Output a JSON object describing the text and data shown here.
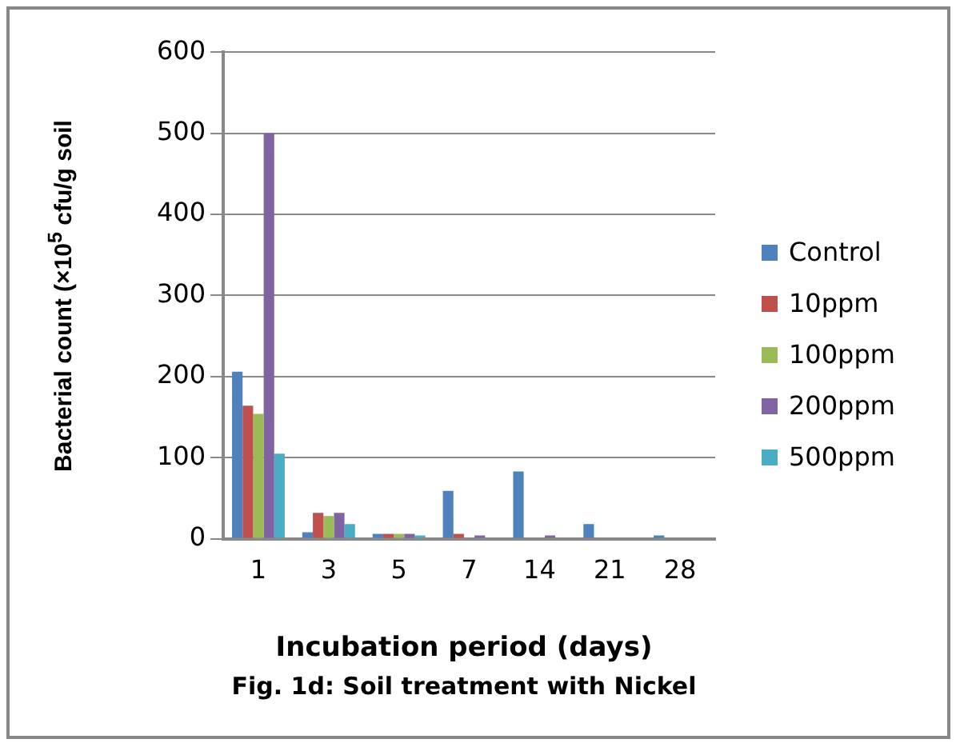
{
  "chart_data": {
    "type": "bar",
    "xlabel": "Incubation period (days)",
    "ylabel": "Bacterial count (×10$^{5}$ cfu/g soil",
    "categories": [
      "1",
      "3",
      "5",
      "7",
      "14",
      "21",
      "28"
    ],
    "series": [
      {
        "name": "Control",
        "color": "#4f81bd",
        "values": [
          206,
          8,
          6,
          59,
          83,
          18,
          4
        ]
      },
      {
        "name": "10ppm",
        "color": "#c0504d",
        "values": [
          164,
          32,
          6,
          6,
          0,
          0,
          0
        ]
      },
      {
        "name": "100ppm",
        "color": "#9bbb59",
        "values": [
          154,
          28,
          6,
          0,
          0,
          0,
          0
        ]
      },
      {
        "name": "200ppm",
        "color": "#8064a2",
        "values": [
          500,
          32,
          6,
          4,
          4,
          0,
          0
        ]
      },
      {
        "name": "500ppm",
        "color": "#4bacc6",
        "values": [
          105,
          18,
          4,
          0,
          0,
          0,
          0
        ]
      }
    ],
    "ylim": [
      0,
      600
    ],
    "yticks": [
      0,
      100,
      200,
      300,
      400,
      500,
      600
    ],
    "grid": "y",
    "legend": "right",
    "annotations": [
      "Fig. 1d: Soil treatment with Nickel"
    ]
  }
}
